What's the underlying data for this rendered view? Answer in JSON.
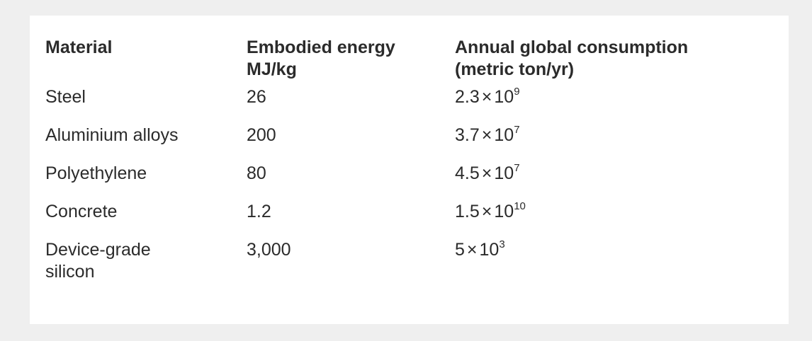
{
  "table": {
    "header": [
      [
        "Material"
      ],
      [
        "Embodied energy",
        "MJ/kg"
      ],
      [
        "Annual global consumption",
        "(metric ton/yr)"
      ]
    ],
    "rows": [
      {
        "material": [
          "Steel"
        ],
        "energy": "26",
        "consumption": {
          "mantissa": "2.3",
          "times": "×",
          "base": "10",
          "exponent": "9"
        }
      },
      {
        "material": [
          "Aluminium alloys"
        ],
        "energy": "200",
        "consumption": {
          "mantissa": "3.7",
          "times": "×",
          "base": "10",
          "exponent": "7"
        }
      },
      {
        "material": [
          "Polyethylene"
        ],
        "energy": "80",
        "consumption": {
          "mantissa": "4.5",
          "times": "×",
          "base": "10",
          "exponent": "7"
        }
      },
      {
        "material": [
          "Concrete"
        ],
        "energy": "1.2",
        "consumption": {
          "mantissa": "1.5",
          "times": "×",
          "base": "10",
          "exponent": "10"
        }
      },
      {
        "material": [
          "Device-grade",
          "silicon"
        ],
        "energy": "3,000",
        "consumption": {
          "mantissa": "5",
          "times": "×",
          "base": "10",
          "exponent": "3"
        }
      }
    ]
  }
}
